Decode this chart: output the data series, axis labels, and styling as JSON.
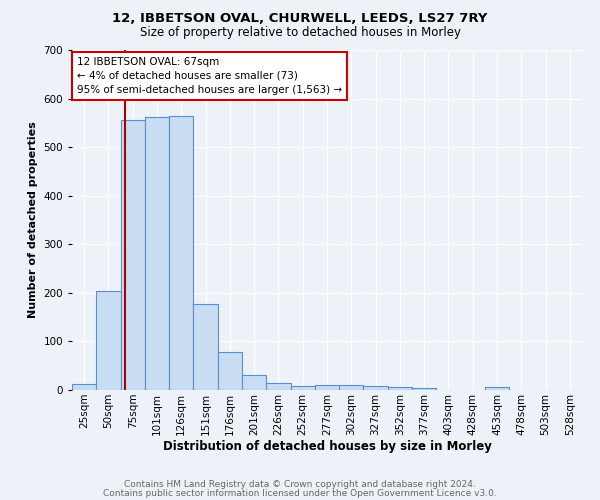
{
  "title1": "12, IBBETSON OVAL, CHURWELL, LEEDS, LS27 7RY",
  "title2": "Size of property relative to detached houses in Morley",
  "xlabel": "Distribution of detached houses by size in Morley",
  "ylabel": "Number of detached properties",
  "categories": [
    "25sqm",
    "50sqm",
    "75sqm",
    "101sqm",
    "126sqm",
    "151sqm",
    "176sqm",
    "201sqm",
    "226sqm",
    "252sqm",
    "277sqm",
    "302sqm",
    "327sqm",
    "352sqm",
    "377sqm",
    "403sqm",
    "428sqm",
    "453sqm",
    "478sqm",
    "503sqm",
    "528sqm"
  ],
  "values": [
    12,
    204,
    555,
    562,
    565,
    178,
    79,
    30,
    14,
    8,
    10,
    10,
    8,
    7,
    5,
    0,
    0,
    6,
    0,
    0,
    0
  ],
  "bar_color": "#c9ddf2",
  "bar_edge_color": "#5b8dd4",
  "bar_linewidth": 0.8,
  "vline_color": "#aa0000",
  "vline_pos": 1.68,
  "annotation_title": "12 IBBETSON OVAL: 67sqm",
  "annotation_line1": "← 4% of detached houses are smaller (73)",
  "annotation_line2": "95% of semi-detached houses are larger (1,563) →",
  "annotation_box_color": "#ffffff",
  "annotation_box_edge": "#cc0000",
  "ylim": [
    0,
    700
  ],
  "yticks": [
    0,
    100,
    200,
    300,
    400,
    500,
    600,
    700
  ],
  "footer1": "Contains HM Land Registry data © Crown copyright and database right 2024.",
  "footer2": "Contains public sector information licensed under the Open Government Licence v3.0.",
  "bg_color": "#edf2f9",
  "plot_bg_color": "#edf2f9",
  "grid_color": "#ffffff",
  "title1_fontsize": 9.5,
  "title2_fontsize": 8.5,
  "xlabel_fontsize": 8.5,
  "ylabel_fontsize": 8.0,
  "tick_fontsize": 7.5,
  "annotation_fontsize": 7.5,
  "footer_fontsize": 6.5
}
